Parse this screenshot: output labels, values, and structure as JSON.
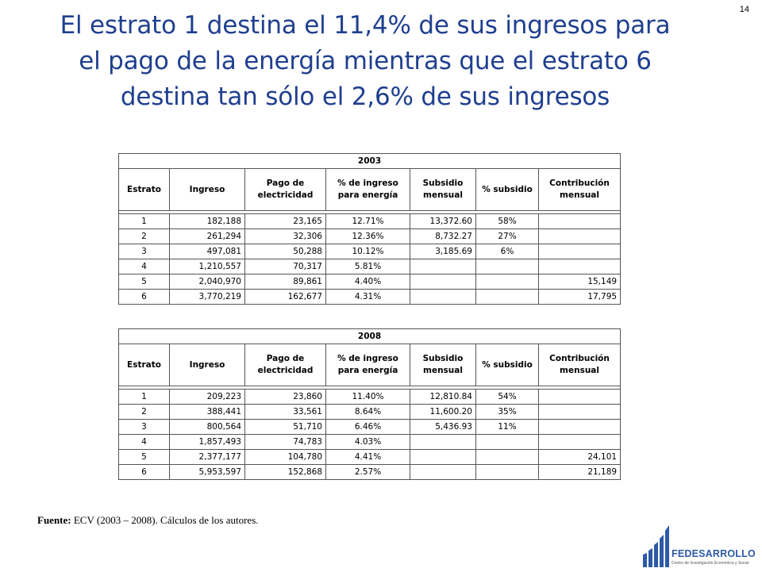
{
  "page_number": "14",
  "title_lines": [
    "El estrato 1 destina el 11,4% de sus ingresos para",
    "el pago de la energía mientras que el estrato 6",
    "destina tan sólo el 2,6% de sus ingresos"
  ],
  "columns": [
    "Estrato",
    "Ingreso",
    "Pago de electricidad",
    "% de ingreso para energía",
    "Subsidio mensual",
    "% subsidio",
    "Contribución mensual"
  ],
  "tables": [
    {
      "year": "2003",
      "rows": [
        [
          "1",
          "182,188",
          "23,165",
          "12.71%",
          "13,372.60",
          "58%",
          ""
        ],
        [
          "2",
          "261,294",
          "32,306",
          "12.36%",
          "8,732.27",
          "27%",
          ""
        ],
        [
          "3",
          "497,081",
          "50,288",
          "10.12%",
          "3,185.69",
          "6%",
          ""
        ],
        [
          "4",
          "1,210,557",
          "70,317",
          "5.81%",
          "",
          "",
          ""
        ],
        [
          "5",
          "2,040,970",
          "89,861",
          "4.40%",
          "",
          "",
          "15,149"
        ],
        [
          "6",
          "3,770,219",
          "162,677",
          "4.31%",
          "",
          "",
          "17,795"
        ]
      ]
    },
    {
      "year": "2008",
      "rows": [
        [
          "1",
          "209,223",
          "23,860",
          "11.40%",
          "12,810.84",
          "54%",
          ""
        ],
        [
          "2",
          "388,441",
          "33,561",
          "8.64%",
          "11,600.20",
          "35%",
          ""
        ],
        [
          "3",
          "800,564",
          "51,710",
          "6.46%",
          "5,436.93",
          "11%",
          ""
        ],
        [
          "4",
          "1,857,493",
          "74,783",
          "4.03%",
          "",
          "",
          ""
        ],
        [
          "5",
          "2,377,177",
          "104,780",
          "4.41%",
          "",
          "",
          "24,101"
        ],
        [
          "6",
          "5,953,597",
          "152,868",
          "2.57%",
          "",
          "",
          "21,189"
        ]
      ]
    }
  ],
  "source": {
    "label": "Fuente:",
    "text": "ECV (2003 – 2008). Cálculos de los autores."
  },
  "logo": {
    "name": "FEDESARROLLO",
    "subtitle": "Centro de Investigación Económica y Social",
    "color": "#2d5aa6"
  }
}
